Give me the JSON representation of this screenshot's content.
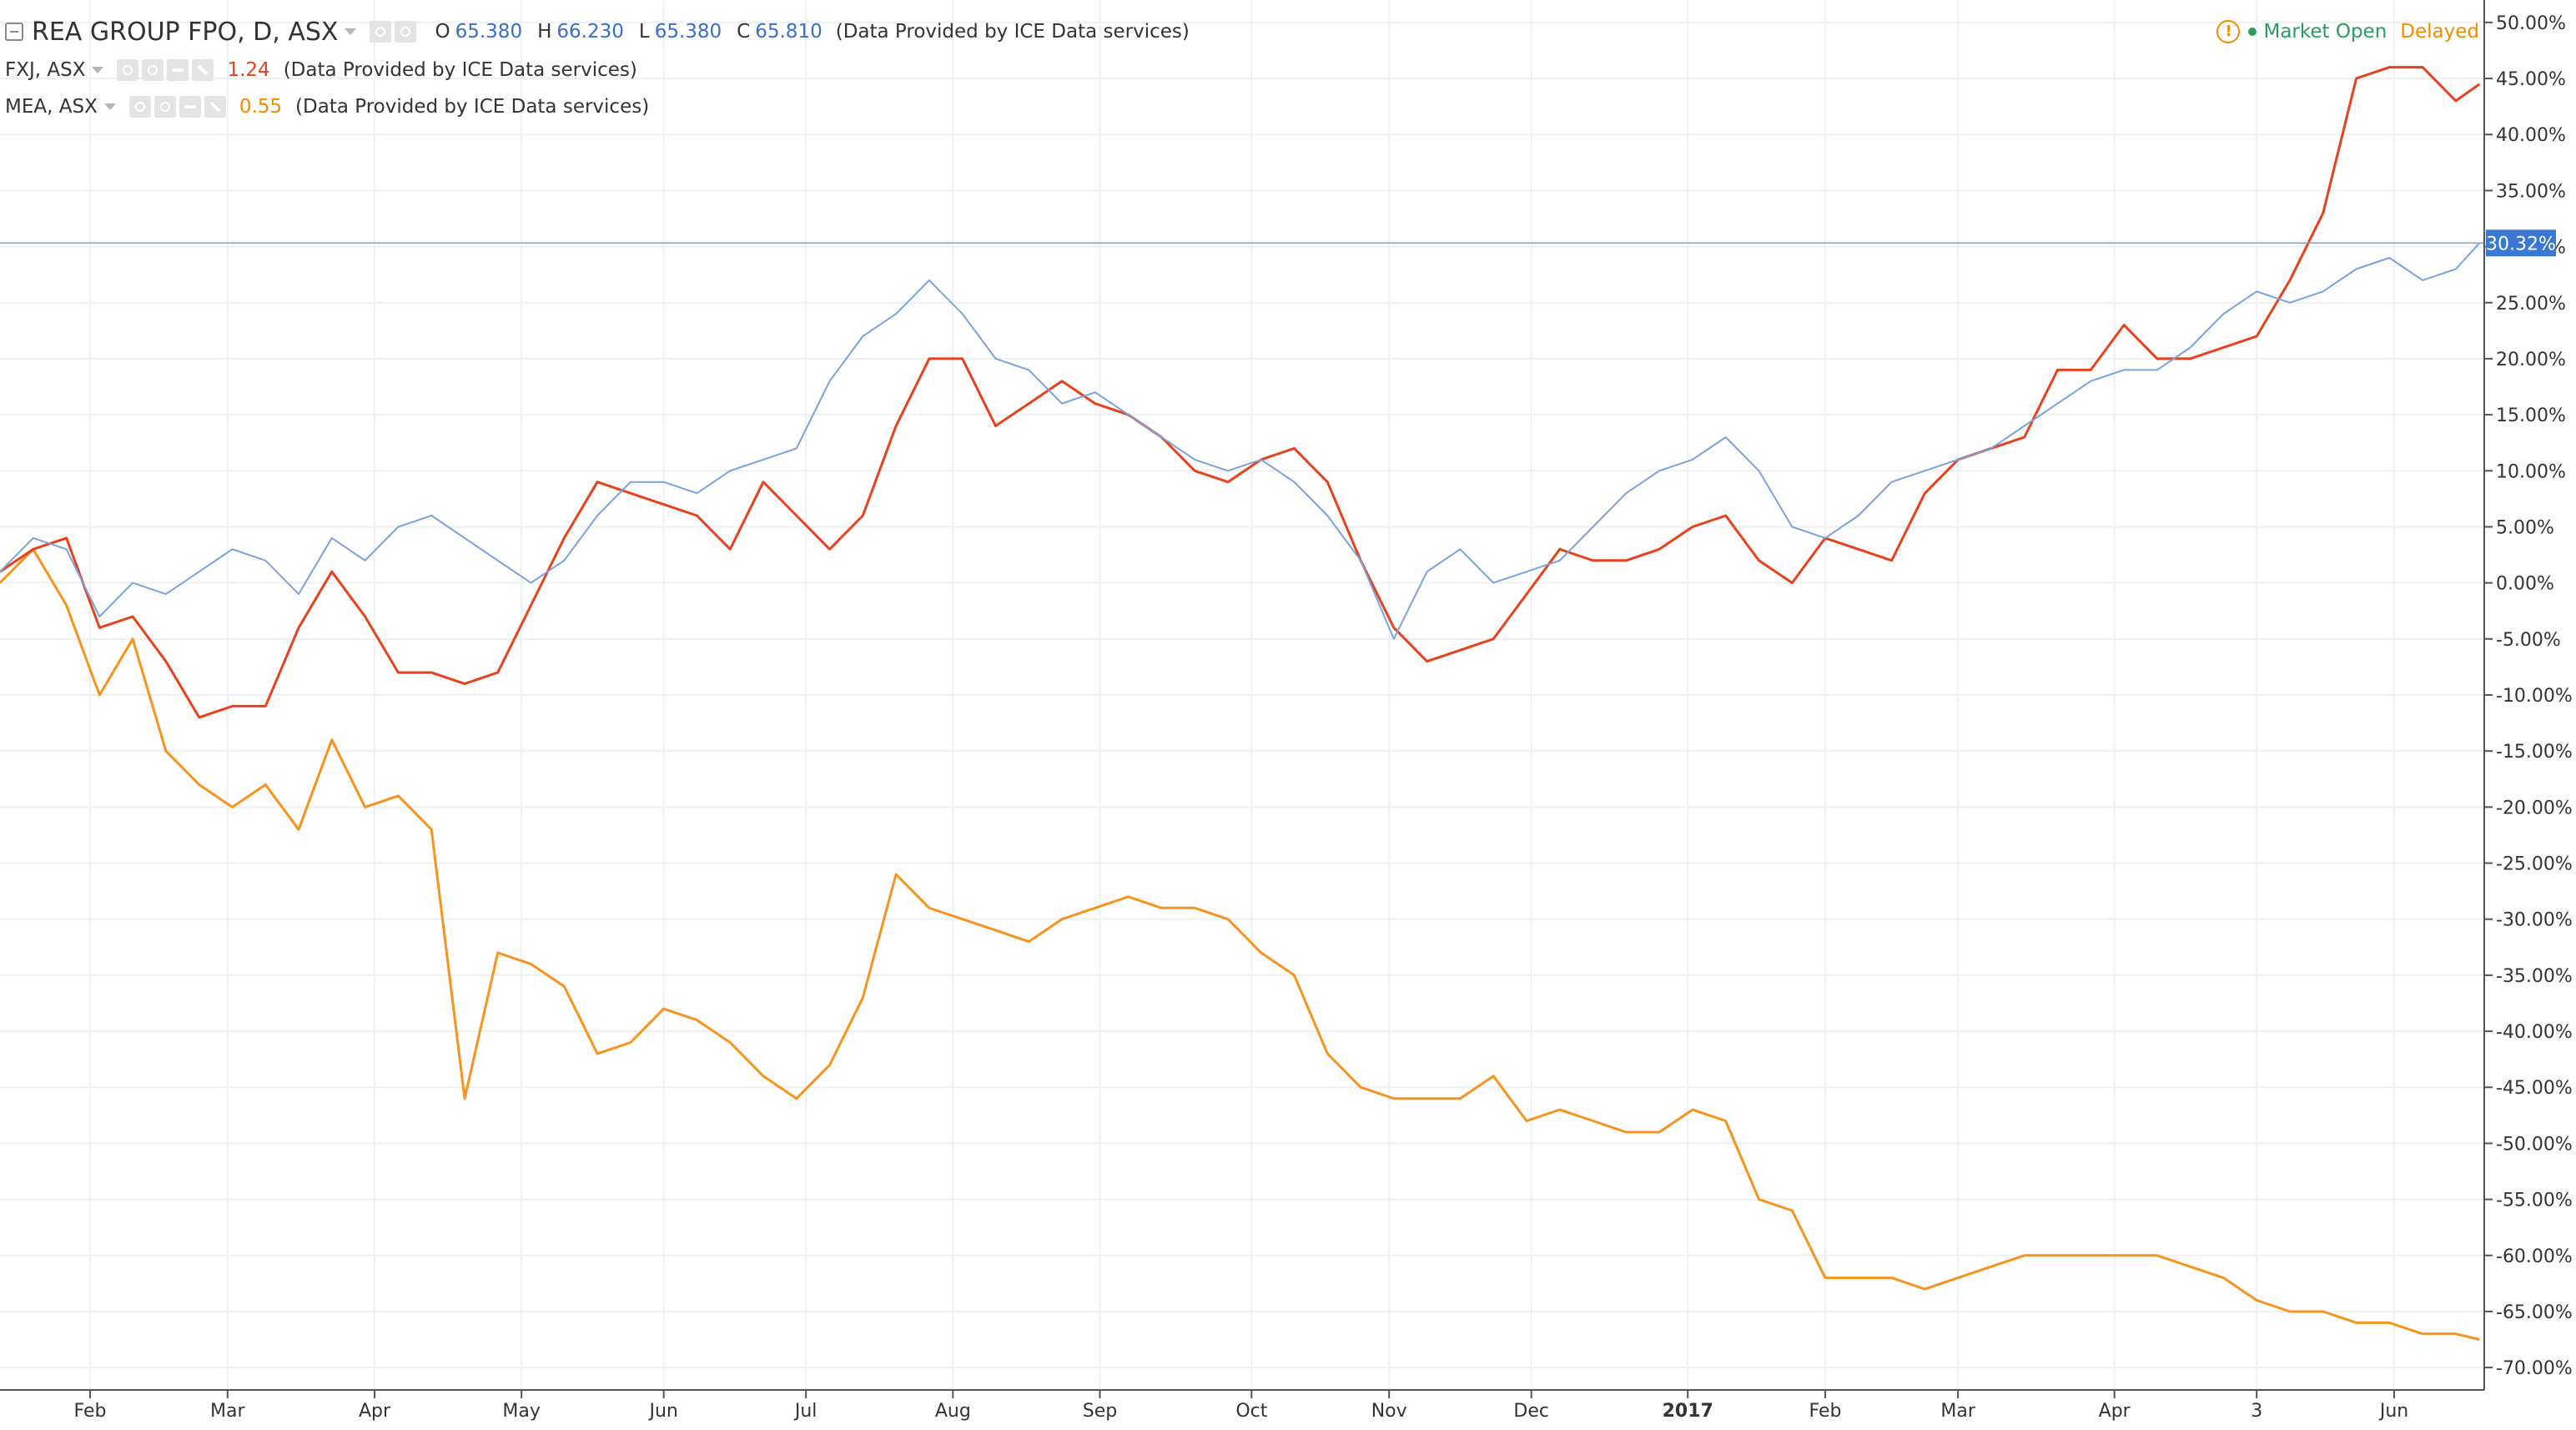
{
  "legend": {
    "main": {
      "symbol": "REA GROUP FPO, D, ASX",
      "o_label": "O",
      "o": "65.380",
      "h_label": "H",
      "h": "66.230",
      "l_label": "L",
      "l": "65.380",
      "c_label": "C",
      "c": "65.810",
      "source": "(Data Provided by ICE Data services)"
    },
    "compare": [
      {
        "symbol": "FXJ, ASX",
        "value": "1.24",
        "source": "(Data Provided by ICE Data services)"
      },
      {
        "symbol": "MEA, ASX",
        "value": "0.55",
        "source": "(Data Provided by ICE Data services)"
      }
    ]
  },
  "status": {
    "warning_glyph": "!",
    "market": "Market Open",
    "delayed": "Delayed"
  },
  "colors": {
    "rea": "#7aa2dc",
    "fxj": "#e8411d",
    "mea": "#f7941d",
    "last_price_bg": "#3a78d4",
    "grid": "#eef0f3",
    "axis_text": "#333333"
  },
  "chart_data": {
    "type": "line",
    "title": "",
    "xlabel": "",
    "ylabel": "",
    "grid": true,
    "y_scale": "percent",
    "ylim": [
      -72,
      52
    ],
    "y_ticks": [
      50,
      45,
      40,
      35,
      30,
      25,
      20,
      15,
      10,
      5,
      0,
      -5,
      -10,
      -15,
      -20,
      -25,
      -30,
      -35,
      -40,
      -45,
      -50,
      -55,
      -60,
      -65,
      -70
    ],
    "y_tick_labels": [
      "50.00%",
      "45.00%",
      "40.00%",
      "35.00%",
      "30.00%",
      "25.00%",
      "20.00%",
      "15.00%",
      "10.00%",
      "5.00%",
      "0.00%",
      "-5.00%",
      "-10.00%",
      "-15.00%",
      "-20.00%",
      "-25.00%",
      "-30.00%",
      "-35.00%",
      "-40.00%",
      "-45.00%",
      "-50.00%",
      "-55.00%",
      "-60.00%",
      "-65.00%",
      "-70.00%"
    ],
    "x_range": [
      "2016-01-13",
      "2017-06-20"
    ],
    "x_ticks": [
      {
        "date": "2016-02-01",
        "label": "Feb"
      },
      {
        "date": "2016-03-01",
        "label": "Mar"
      },
      {
        "date": "2016-04-01",
        "label": "Apr"
      },
      {
        "date": "2016-05-02",
        "label": "May"
      },
      {
        "date": "2016-06-01",
        "label": "Jun"
      },
      {
        "date": "2016-07-01",
        "label": "Jul"
      },
      {
        "date": "2016-08-01",
        "label": "Aug"
      },
      {
        "date": "2016-09-01",
        "label": "Sep"
      },
      {
        "date": "2016-10-03",
        "label": "Oct"
      },
      {
        "date": "2016-11-01",
        "label": "Nov"
      },
      {
        "date": "2016-12-01",
        "label": "Dec"
      },
      {
        "date": "2017-01-03",
        "label": "2017",
        "bold": true
      },
      {
        "date": "2017-02-01",
        "label": "Feb"
      },
      {
        "date": "2017-03-01",
        "label": "Mar"
      },
      {
        "date": "2017-04-03",
        "label": "Apr"
      },
      {
        "date": "2017-05-03",
        "label": "3"
      },
      {
        "date": "2017-06-01",
        "label": "Jun"
      }
    ],
    "last_price": {
      "value": 30.32,
      "label": "30.32%"
    },
    "series": [
      {
        "name": "REA GROUP FPO, D, ASX",
        "x": [
          "2016-01-13",
          "2016-01-20",
          "2016-01-27",
          "2016-02-03",
          "2016-02-10",
          "2016-02-17",
          "2016-02-24",
          "2016-03-02",
          "2016-03-09",
          "2016-03-16",
          "2016-03-23",
          "2016-03-30",
          "2016-04-06",
          "2016-04-13",
          "2016-04-20",
          "2016-04-27",
          "2016-05-04",
          "2016-05-11",
          "2016-05-18",
          "2016-05-25",
          "2016-06-01",
          "2016-06-08",
          "2016-06-15",
          "2016-06-22",
          "2016-06-29",
          "2016-07-06",
          "2016-07-13",
          "2016-07-20",
          "2016-07-27",
          "2016-08-03",
          "2016-08-10",
          "2016-08-17",
          "2016-08-24",
          "2016-08-31",
          "2016-09-07",
          "2016-09-14",
          "2016-09-21",
          "2016-09-28",
          "2016-10-05",
          "2016-10-12",
          "2016-10-19",
          "2016-10-26",
          "2016-11-02",
          "2016-11-09",
          "2016-11-16",
          "2016-11-23",
          "2016-11-30",
          "2016-12-07",
          "2016-12-14",
          "2016-12-21",
          "2016-12-28",
          "2017-01-04",
          "2017-01-11",
          "2017-01-18",
          "2017-01-25",
          "2017-02-01",
          "2017-02-08",
          "2017-02-15",
          "2017-02-22",
          "2017-03-01",
          "2017-03-08",
          "2017-03-15",
          "2017-03-22",
          "2017-03-29",
          "2017-04-05",
          "2017-04-12",
          "2017-04-19",
          "2017-04-26",
          "2017-05-03",
          "2017-05-10",
          "2017-05-17",
          "2017-05-24",
          "2017-05-31",
          "2017-06-07",
          "2017-06-14",
          "2017-06-19"
        ],
        "values": [
          1,
          4,
          3,
          -3,
          0,
          -1,
          1,
          3,
          2,
          -1,
          4,
          2,
          5,
          6,
          4,
          2,
          0,
          2,
          6,
          9,
          9,
          8,
          10,
          11,
          12,
          18,
          22,
          24,
          27,
          24,
          20,
          19,
          16,
          17,
          15,
          13,
          11,
          10,
          11,
          9,
          6,
          2,
          -5,
          1,
          3,
          0,
          1,
          2,
          5,
          8,
          10,
          11,
          13,
          10,
          5,
          4,
          6,
          9,
          10,
          11,
          12,
          14,
          16,
          18,
          19,
          19,
          21,
          24,
          26,
          25,
          26,
          28,
          29,
          27,
          28,
          30.32
        ]
      },
      {
        "name": "FXJ, ASX",
        "x": [
          "2016-01-13",
          "2016-01-20",
          "2016-01-27",
          "2016-02-03",
          "2016-02-10",
          "2016-02-17",
          "2016-02-24",
          "2016-03-02",
          "2016-03-09",
          "2016-03-16",
          "2016-03-23",
          "2016-03-30",
          "2016-04-06",
          "2016-04-13",
          "2016-04-20",
          "2016-04-27",
          "2016-05-04",
          "2016-05-11",
          "2016-05-18",
          "2016-05-25",
          "2016-06-01",
          "2016-06-08",
          "2016-06-15",
          "2016-06-22",
          "2016-06-29",
          "2016-07-06",
          "2016-07-13",
          "2016-07-20",
          "2016-07-27",
          "2016-08-03",
          "2016-08-10",
          "2016-08-17",
          "2016-08-24",
          "2016-08-31",
          "2016-09-07",
          "2016-09-14",
          "2016-09-21",
          "2016-09-28",
          "2016-10-05",
          "2016-10-12",
          "2016-10-19",
          "2016-10-26",
          "2016-11-02",
          "2016-11-09",
          "2016-11-16",
          "2016-11-23",
          "2016-11-30",
          "2016-12-07",
          "2016-12-14",
          "2016-12-21",
          "2016-12-28",
          "2017-01-04",
          "2017-01-11",
          "2017-01-18",
          "2017-01-25",
          "2017-02-01",
          "2017-02-08",
          "2017-02-15",
          "2017-02-22",
          "2017-03-01",
          "2017-03-08",
          "2017-03-15",
          "2017-03-22",
          "2017-03-29",
          "2017-04-05",
          "2017-04-12",
          "2017-04-19",
          "2017-04-26",
          "2017-05-03",
          "2017-05-10",
          "2017-05-17",
          "2017-05-24",
          "2017-05-31",
          "2017-06-07",
          "2017-06-14",
          "2017-06-19"
        ],
        "values": [
          1,
          3,
          4,
          -4,
          -3,
          -7,
          -12,
          -11,
          -11,
          -4,
          1,
          -3,
          -8,
          -8,
          -9,
          -8,
          -2,
          4,
          9,
          8,
          7,
          6,
          3,
          9,
          6,
          3,
          6,
          14,
          20,
          20,
          14,
          16,
          18,
          16,
          15,
          13,
          10,
          9,
          11,
          12,
          9,
          2,
          -4,
          -7,
          -6,
          -5,
          -1,
          3,
          2,
          2,
          3,
          5,
          6,
          2,
          0,
          4,
          3,
          2,
          8,
          11,
          12,
          13,
          19,
          19,
          23,
          20,
          20,
          21,
          22,
          27,
          33,
          45,
          46,
          46,
          43,
          44.5
        ]
      },
      {
        "name": "MEA, ASX",
        "x": [
          "2016-01-13",
          "2016-01-20",
          "2016-01-27",
          "2016-02-03",
          "2016-02-10",
          "2016-02-17",
          "2016-02-24",
          "2016-03-02",
          "2016-03-09",
          "2016-03-16",
          "2016-03-23",
          "2016-03-30",
          "2016-04-06",
          "2016-04-13",
          "2016-04-20",
          "2016-04-27",
          "2016-05-04",
          "2016-05-11",
          "2016-05-18",
          "2016-05-25",
          "2016-06-01",
          "2016-06-08",
          "2016-06-15",
          "2016-06-22",
          "2016-06-29",
          "2016-07-06",
          "2016-07-13",
          "2016-07-20",
          "2016-07-27",
          "2016-08-03",
          "2016-08-10",
          "2016-08-17",
          "2016-08-24",
          "2016-08-31",
          "2016-09-07",
          "2016-09-14",
          "2016-09-21",
          "2016-09-28",
          "2016-10-05",
          "2016-10-12",
          "2016-10-19",
          "2016-10-26",
          "2016-11-02",
          "2016-11-09",
          "2016-11-16",
          "2016-11-23",
          "2016-11-30",
          "2016-12-07",
          "2016-12-14",
          "2016-12-21",
          "2016-12-28",
          "2017-01-04",
          "2017-01-11",
          "2017-01-18",
          "2017-01-25",
          "2017-02-01",
          "2017-02-08",
          "2017-02-15",
          "2017-02-22",
          "2017-03-01",
          "2017-03-08",
          "2017-03-15",
          "2017-03-22",
          "2017-03-29",
          "2017-04-05",
          "2017-04-12",
          "2017-04-19",
          "2017-04-26",
          "2017-05-03",
          "2017-05-10",
          "2017-05-17",
          "2017-05-24",
          "2017-05-31",
          "2017-06-07",
          "2017-06-14",
          "2017-06-19"
        ],
        "values": [
          0,
          3,
          -2,
          -10,
          -5,
          -15,
          -18,
          -20,
          -18,
          -22,
          -14,
          -20,
          -19,
          -22,
          -46,
          -33,
          -34,
          -36,
          -42,
          -41,
          -38,
          -39,
          -41,
          -44,
          -46,
          -43,
          -37,
          -26,
          -29,
          -30,
          -31,
          -32,
          -30,
          -29,
          -28,
          -29,
          -29,
          -30,
          -33,
          -35,
          -42,
          -45,
          -46,
          -46,
          -46,
          -44,
          -48,
          -47,
          -48,
          -49,
          -49,
          -47,
          -48,
          -55,
          -56,
          -62,
          -62,
          -62,
          -63,
          -62,
          -61,
          -60,
          -60,
          -60,
          -60,
          -60,
          -61,
          -62,
          -64,
          -65,
          -65,
          -66,
          -66,
          -67,
          -67,
          -67.5
        ]
      }
    ]
  }
}
